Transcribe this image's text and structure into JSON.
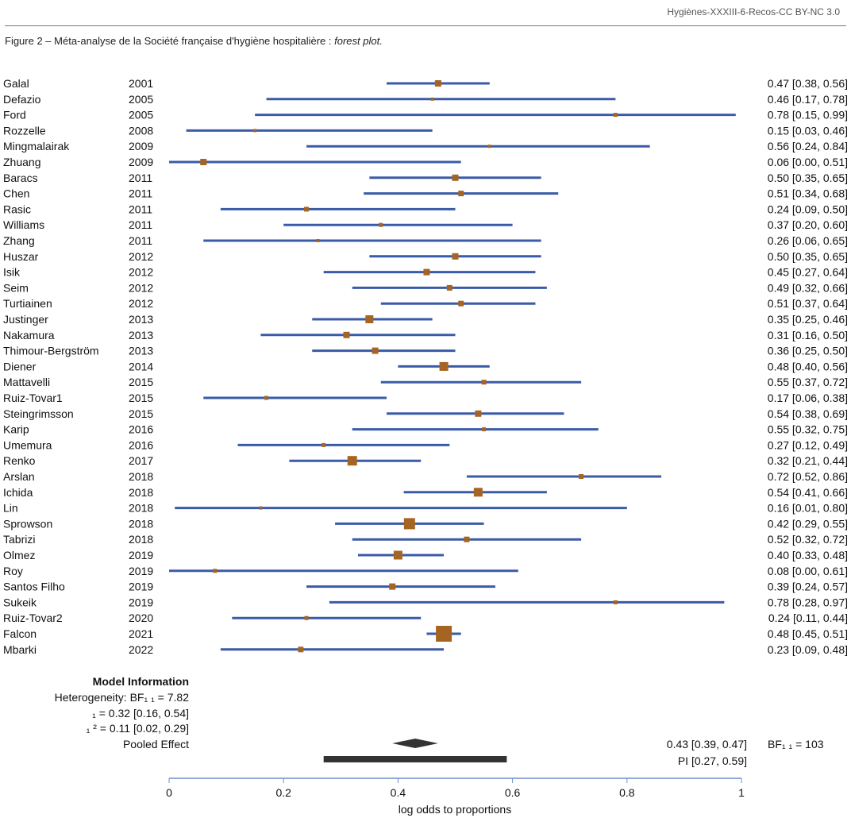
{
  "header": {
    "source": "Hygiènes-XXXIII-6-Recos-CC BY-NC 3.0"
  },
  "figure": {
    "title": "Figure 2 – Méta-analyse de la Société française d'hygiène hospitalière : ",
    "title_italic": "forest plot."
  },
  "chart_data": {
    "type": "forest",
    "xlabel": "log odds to proportions",
    "xlim": [
      0,
      1
    ],
    "xticks": [
      "0",
      "0.2",
      "0.4",
      "0.6",
      "0.8",
      "1"
    ],
    "xtick_values": [
      0,
      0.2,
      0.4,
      0.6,
      0.8,
      1
    ],
    "colors": {
      "ci": "#3a5ba8",
      "point": "#a66422",
      "pooled": "#333333",
      "axis": "#6f8fc8"
    },
    "studies": [
      {
        "name": "Galal",
        "year": "2001",
        "est": 0.47,
        "lo": 0.38,
        "hi": 0.56,
        "label": "0.47 [0.38, 0.56]",
        "weight": 8
      },
      {
        "name": "Defazio",
        "year": "2005",
        "est": 0.46,
        "lo": 0.17,
        "hi": 0.78,
        "label": "0.46 [0.17, 0.78]",
        "weight": 4
      },
      {
        "name": "Ford",
        "year": "2005",
        "est": 0.78,
        "lo": 0.15,
        "hi": 0.99,
        "label": "0.78 [0.15, 0.99]",
        "weight": 5
      },
      {
        "name": "Rozzelle",
        "year": "2008",
        "est": 0.15,
        "lo": 0.03,
        "hi": 0.46,
        "label": "0.15 [0.03, 0.46]",
        "weight": 4
      },
      {
        "name": "Mingmalairak",
        "year": "2009",
        "est": 0.56,
        "lo": 0.24,
        "hi": 0.84,
        "label": "0.56 [0.24, 0.84]",
        "weight": 4
      },
      {
        "name": "Zhuang",
        "year": "2009",
        "est": 0.06,
        "lo": 0.0,
        "hi": 0.51,
        "label": "0.06 [0.00, 0.51]",
        "weight": 8
      },
      {
        "name": "Baracs",
        "year": "2011",
        "est": 0.5,
        "lo": 0.35,
        "hi": 0.65,
        "label": "0.50 [0.35, 0.65]",
        "weight": 8
      },
      {
        "name": "Chen",
        "year": "2011",
        "est": 0.51,
        "lo": 0.34,
        "hi": 0.68,
        "label": "0.51 [0.34, 0.68]",
        "weight": 7
      },
      {
        "name": "Rasic",
        "year": "2011",
        "est": 0.24,
        "lo": 0.09,
        "hi": 0.5,
        "label": "0.24 [0.09, 0.50]",
        "weight": 6
      },
      {
        "name": "Williams",
        "year": "2011",
        "est": 0.37,
        "lo": 0.2,
        "hi": 0.6,
        "label": "0.37 [0.20, 0.60]",
        "weight": 5
      },
      {
        "name": "Zhang",
        "year": "2011",
        "est": 0.26,
        "lo": 0.06,
        "hi": 0.65,
        "label": "0.26 [0.06, 0.65]",
        "weight": 4
      },
      {
        "name": "Huszar",
        "year": "2012",
        "est": 0.5,
        "lo": 0.35,
        "hi": 0.65,
        "label": "0.50 [0.35, 0.65]",
        "weight": 8
      },
      {
        "name": "Isik",
        "year": "2012",
        "est": 0.45,
        "lo": 0.27,
        "hi": 0.64,
        "label": "0.45 [0.27, 0.64]",
        "weight": 8
      },
      {
        "name": "Seim",
        "year": "2012",
        "est": 0.49,
        "lo": 0.32,
        "hi": 0.66,
        "label": "0.49 [0.32, 0.66]",
        "weight": 7
      },
      {
        "name": "Turtiainen",
        "year": "2012",
        "est": 0.51,
        "lo": 0.37,
        "hi": 0.64,
        "label": "0.51 [0.37, 0.64]",
        "weight": 7
      },
      {
        "name": "Justinger",
        "year": "2013",
        "est": 0.35,
        "lo": 0.25,
        "hi": 0.46,
        "label": "0.35 [0.25, 0.46]",
        "weight": 10
      },
      {
        "name": "Nakamura",
        "year": "2013",
        "est": 0.31,
        "lo": 0.16,
        "hi": 0.5,
        "label": "0.31 [0.16, 0.50]",
        "weight": 8
      },
      {
        "name": "Thimour-Bergström",
        "year": "2013",
        "est": 0.36,
        "lo": 0.25,
        "hi": 0.5,
        "label": "0.36 [0.25, 0.50]",
        "weight": 8
      },
      {
        "name": "Diener",
        "year": "2014",
        "est": 0.48,
        "lo": 0.4,
        "hi": 0.56,
        "label": "0.48 [0.40, 0.56]",
        "weight": 11
      },
      {
        "name": "Mattavelli",
        "year": "2015",
        "est": 0.55,
        "lo": 0.37,
        "hi": 0.72,
        "label": "0.55 [0.37, 0.72]",
        "weight": 6
      },
      {
        "name": "Ruiz-Tovar1",
        "year": "2015",
        "est": 0.17,
        "lo": 0.06,
        "hi": 0.38,
        "label": "0.17 [0.06, 0.38]",
        "weight": 5
      },
      {
        "name": "Steingrimsson",
        "year": "2015",
        "est": 0.54,
        "lo": 0.38,
        "hi": 0.69,
        "label": "0.54 [0.38, 0.69]",
        "weight": 8
      },
      {
        "name": "Karip",
        "year": "2016",
        "est": 0.55,
        "lo": 0.32,
        "hi": 0.75,
        "label": "0.55 [0.32, 0.75]",
        "weight": 5
      },
      {
        "name": "Umemura",
        "year": "2016",
        "est": 0.27,
        "lo": 0.12,
        "hi": 0.49,
        "label": "0.27 [0.12, 0.49]",
        "weight": 5
      },
      {
        "name": "Renko",
        "year": "2017",
        "est": 0.32,
        "lo": 0.21,
        "hi": 0.44,
        "label": "0.32 [0.21, 0.44]",
        "weight": 12
      },
      {
        "name": "Arslan",
        "year": "2018",
        "est": 0.72,
        "lo": 0.52,
        "hi": 0.86,
        "label": "0.72 [0.52, 0.86]",
        "weight": 6
      },
      {
        "name": "Ichida",
        "year": "2018",
        "est": 0.54,
        "lo": 0.41,
        "hi": 0.66,
        "label": "0.54 [0.41, 0.66]",
        "weight": 11
      },
      {
        "name": "Lin",
        "year": "2018",
        "est": 0.16,
        "lo": 0.01,
        "hi": 0.8,
        "label": "0.16 [0.01, 0.80]",
        "weight": 4
      },
      {
        "name": "Sprowson",
        "year": "2018",
        "est": 0.42,
        "lo": 0.29,
        "hi": 0.55,
        "label": "0.42 [0.29, 0.55]",
        "weight": 14
      },
      {
        "name": "Tabrizi",
        "year": "2018",
        "est": 0.52,
        "lo": 0.32,
        "hi": 0.72,
        "label": "0.52 [0.32, 0.72]",
        "weight": 7
      },
      {
        "name": "Olmez",
        "year": "2019",
        "est": 0.4,
        "lo": 0.33,
        "hi": 0.48,
        "label": "0.40 [0.33, 0.48]",
        "weight": 11
      },
      {
        "name": "Roy",
        "year": "2019",
        "est": 0.08,
        "lo": 0.0,
        "hi": 0.61,
        "label": "0.08 [0.00, 0.61]",
        "weight": 5
      },
      {
        "name": "Santos Filho",
        "year": "2019",
        "est": 0.39,
        "lo": 0.24,
        "hi": 0.57,
        "label": "0.39 [0.24, 0.57]",
        "weight": 8
      },
      {
        "name": "Sukeik",
        "year": "2019",
        "est": 0.78,
        "lo": 0.28,
        "hi": 0.97,
        "label": "0.78 [0.28, 0.97]",
        "weight": 5
      },
      {
        "name": "Ruiz-Tovar2",
        "year": "2020",
        "est": 0.24,
        "lo": 0.11,
        "hi": 0.44,
        "label": "0.24 [0.11, 0.44]",
        "weight": 5
      },
      {
        "name": "Falcon",
        "year": "2021",
        "est": 0.48,
        "lo": 0.45,
        "hi": 0.51,
        "label": "0.48 [0.45, 0.51]",
        "weight": 20
      },
      {
        "name": "Mbarki",
        "year": "2022",
        "est": 0.23,
        "lo": 0.09,
        "hi": 0.48,
        "label": "0.23 [0.09, 0.48]",
        "weight": 7
      }
    ],
    "model": {
      "heading": "Model Information",
      "heterogeneity": "Heterogeneity: BF₁ ₁  = 7.82",
      "tau": "₁  = 0.32 [0.16, 0.54]",
      "tau2": "₁ ² = 0.11 [0.02, 0.29]",
      "pooled_label": "Pooled Effect",
      "pooled": {
        "est": 0.43,
        "lo": 0.39,
        "hi": 0.47,
        "label": "0.43 [0.39, 0.47]"
      },
      "bf": "BF₁ ₁  = 103",
      "pi": {
        "lo": 0.27,
        "hi": 0.59,
        "label": "PI [0.27, 0.59]"
      }
    }
  }
}
